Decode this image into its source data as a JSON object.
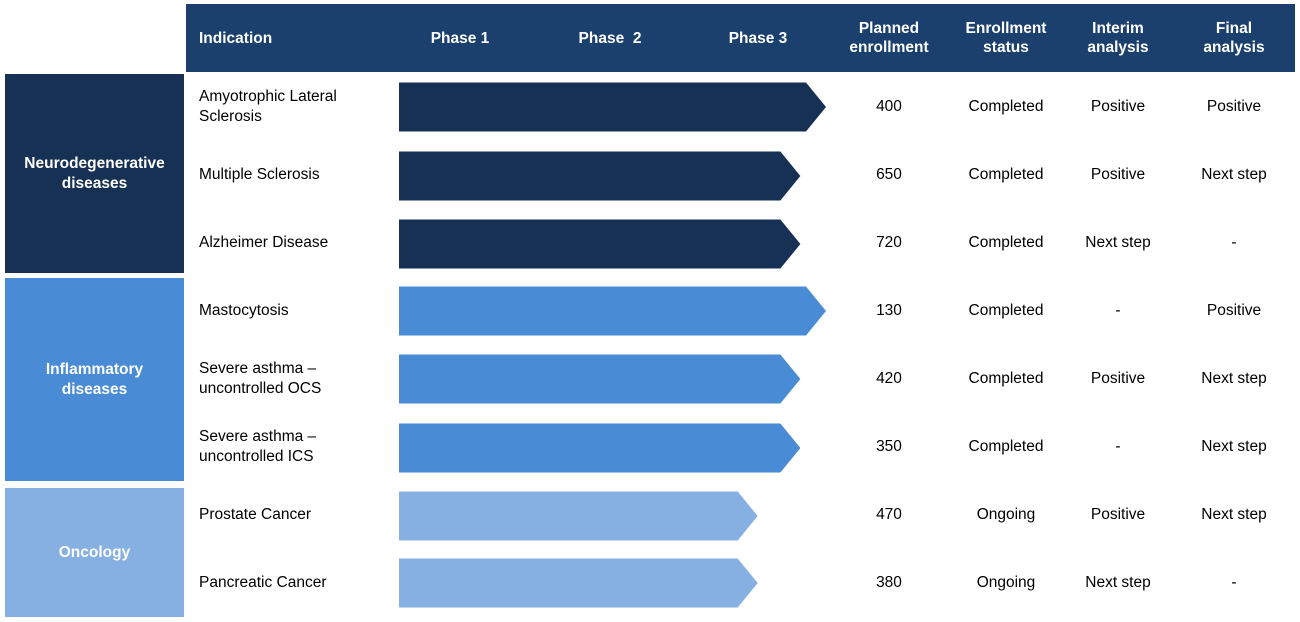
{
  "colors": {
    "header": "#1b406e",
    "neuro": "#163154",
    "inflammatory": "#4a8bd5",
    "oncology": "#86b0e2"
  },
  "header": {
    "indication": "Indication",
    "phase1": "Phase 1",
    "phase2": "Phase  2",
    "phase3": "Phase 3",
    "planned_enrollment": "Planned enrollment",
    "enrollment_status": "Enrollment status",
    "interim_analysis": "Interim analysis",
    "final_analysis": "Final analysis"
  },
  "groups": [
    {
      "name": "Neurodegenerative diseases",
      "label_lines": "Neurodegenerative\ndiseases"
    },
    {
      "name": "Inflammatory diseases",
      "label_lines": "Inflammatory\ndiseases"
    },
    {
      "name": "Oncology",
      "label_lines": "Oncology"
    }
  ],
  "rows": [
    {
      "indication": "Amyotrophic Lateral\nSclerosis",
      "group": 0,
      "phase_reached": "Phase 3 (complete)",
      "progress": 1.0,
      "planned_enrollment": "400",
      "enrollment_status": "Completed",
      "interim_analysis": "Positive",
      "final_analysis": "Positive"
    },
    {
      "indication": "Multiple Sclerosis",
      "group": 0,
      "phase_reached": "Phase 3",
      "progress": 0.94,
      "planned_enrollment": "650",
      "enrollment_status": "Completed",
      "interim_analysis": "Positive",
      "final_analysis": "Next step"
    },
    {
      "indication": "Alzheimer Disease",
      "group": 0,
      "phase_reached": "Phase 3",
      "progress": 0.94,
      "planned_enrollment": "720",
      "enrollment_status": "Completed",
      "interim_analysis": "Next step",
      "final_analysis": "-"
    },
    {
      "indication": "Mastocytosis",
      "group": 1,
      "phase_reached": "Phase 3 (complete)",
      "progress": 1.0,
      "planned_enrollment": "130",
      "enrollment_status": "Completed",
      "interim_analysis": "-",
      "final_analysis": "Positive"
    },
    {
      "indication": "Severe asthma –\nuncontrolled OCS",
      "group": 1,
      "phase_reached": "Phase 3",
      "progress": 0.94,
      "planned_enrollment": "420",
      "enrollment_status": "Completed",
      "interim_analysis": "Positive",
      "final_analysis": "Next step"
    },
    {
      "indication": "Severe asthma –\nuncontrolled ICS",
      "group": 1,
      "phase_reached": "Phase 3",
      "progress": 0.94,
      "planned_enrollment": "350",
      "enrollment_status": "Completed",
      "interim_analysis": "-",
      "final_analysis": "Next step"
    },
    {
      "indication": "Prostate Cancer",
      "group": 2,
      "phase_reached": "Phase 3",
      "progress": 0.84,
      "planned_enrollment": "470",
      "enrollment_status": "Ongoing",
      "interim_analysis": "Positive",
      "final_analysis": "Next step"
    },
    {
      "indication": "Pancreatic Cancer",
      "group": 2,
      "phase_reached": "Phase 3",
      "progress": 0.84,
      "planned_enrollment": "380",
      "enrollment_status": "Ongoing",
      "interim_analysis": "Next step",
      "final_analysis": "-"
    }
  ]
}
